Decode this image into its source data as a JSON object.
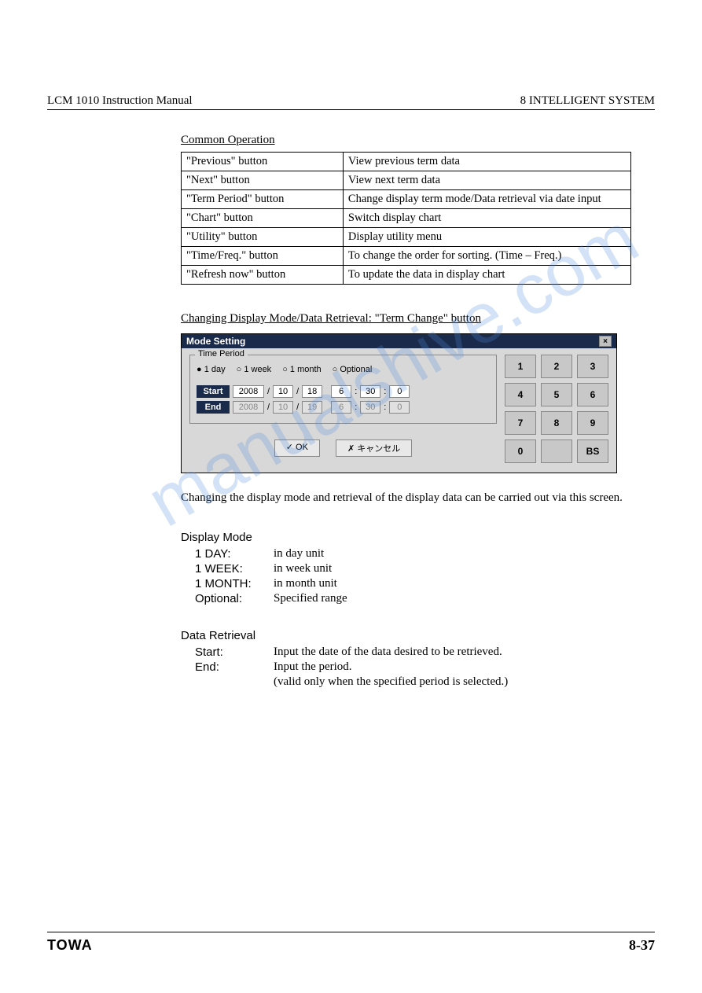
{
  "header": {
    "left": "LCM 1010  Instruction Manual",
    "right": "8    INTELLIGENT SYSTEM"
  },
  "common_operation": {
    "title": "Common Operation",
    "rows": [
      {
        "button": "\"Previous\" button",
        "desc": "View previous term data"
      },
      {
        "button": "\"Next\" button",
        "desc": "View next term data"
      },
      {
        "button": "\"Term Period\" button",
        "desc": "Change display term mode/Data retrieval via date input"
      },
      {
        "button": "\"Chart\" button",
        "desc": "Switch display chart"
      },
      {
        "button": "\"Utility\" button",
        "desc": "Display utility menu"
      },
      {
        "button": "\"Time/Freq.\" button",
        "desc": "To change the order for sorting. (Time – Freq.)"
      },
      {
        "button": "\"Refresh now\" button",
        "desc": "To update the data in display chart"
      }
    ]
  },
  "subsection_title": "Changing Display Mode/Data Retrieval: \"Term Change\" button",
  "dialog": {
    "title": "Mode Setting",
    "fieldset_legend": "Time Period",
    "radios": {
      "r1": "1 day",
      "r2": "1 week",
      "r3": "1 month",
      "r4": "Optional"
    },
    "start": {
      "label": "Start",
      "y": "2008",
      "m": "10",
      "d": "18",
      "h": "6",
      "min": "30",
      "s": "0"
    },
    "end": {
      "label": "End",
      "y": "2008",
      "m": "10",
      "d": "19",
      "h": "6",
      "min": "30",
      "s": "0"
    },
    "ok": "✓ OK",
    "cancel": "✗ キャンセル",
    "keys": {
      "k1": "1",
      "k2": "2",
      "k3": "3",
      "k4": "4",
      "k5": "5",
      "k6": "6",
      "k7": "7",
      "k8": "8",
      "k9": "9",
      "k0": "0",
      "kblank": "",
      "kbs": "BS"
    }
  },
  "desc_text": "Changing the display mode and retrieval of the display data can be carried out via this screen.",
  "display_mode": {
    "heading": "Display Mode",
    "items": [
      {
        "label": "1 DAY:",
        "desc": "in day unit"
      },
      {
        "label": "1 WEEK:",
        "desc": "in week unit"
      },
      {
        "label": "1 MONTH:",
        "desc": "in month unit"
      },
      {
        "label": "Optional:",
        "desc": "Specified range"
      }
    ]
  },
  "data_retrieval": {
    "heading": "Data Retrieval",
    "items": [
      {
        "label": "Start:",
        "desc": "Input the date of the data desired to be retrieved."
      },
      {
        "label": "End:",
        "desc": "Input the period."
      },
      {
        "label": "",
        "desc": "(valid only when the specified period is selected.)"
      }
    ]
  },
  "footer": {
    "logo": "TOWA",
    "page": "8-37"
  },
  "watermark": "manualshive.com"
}
